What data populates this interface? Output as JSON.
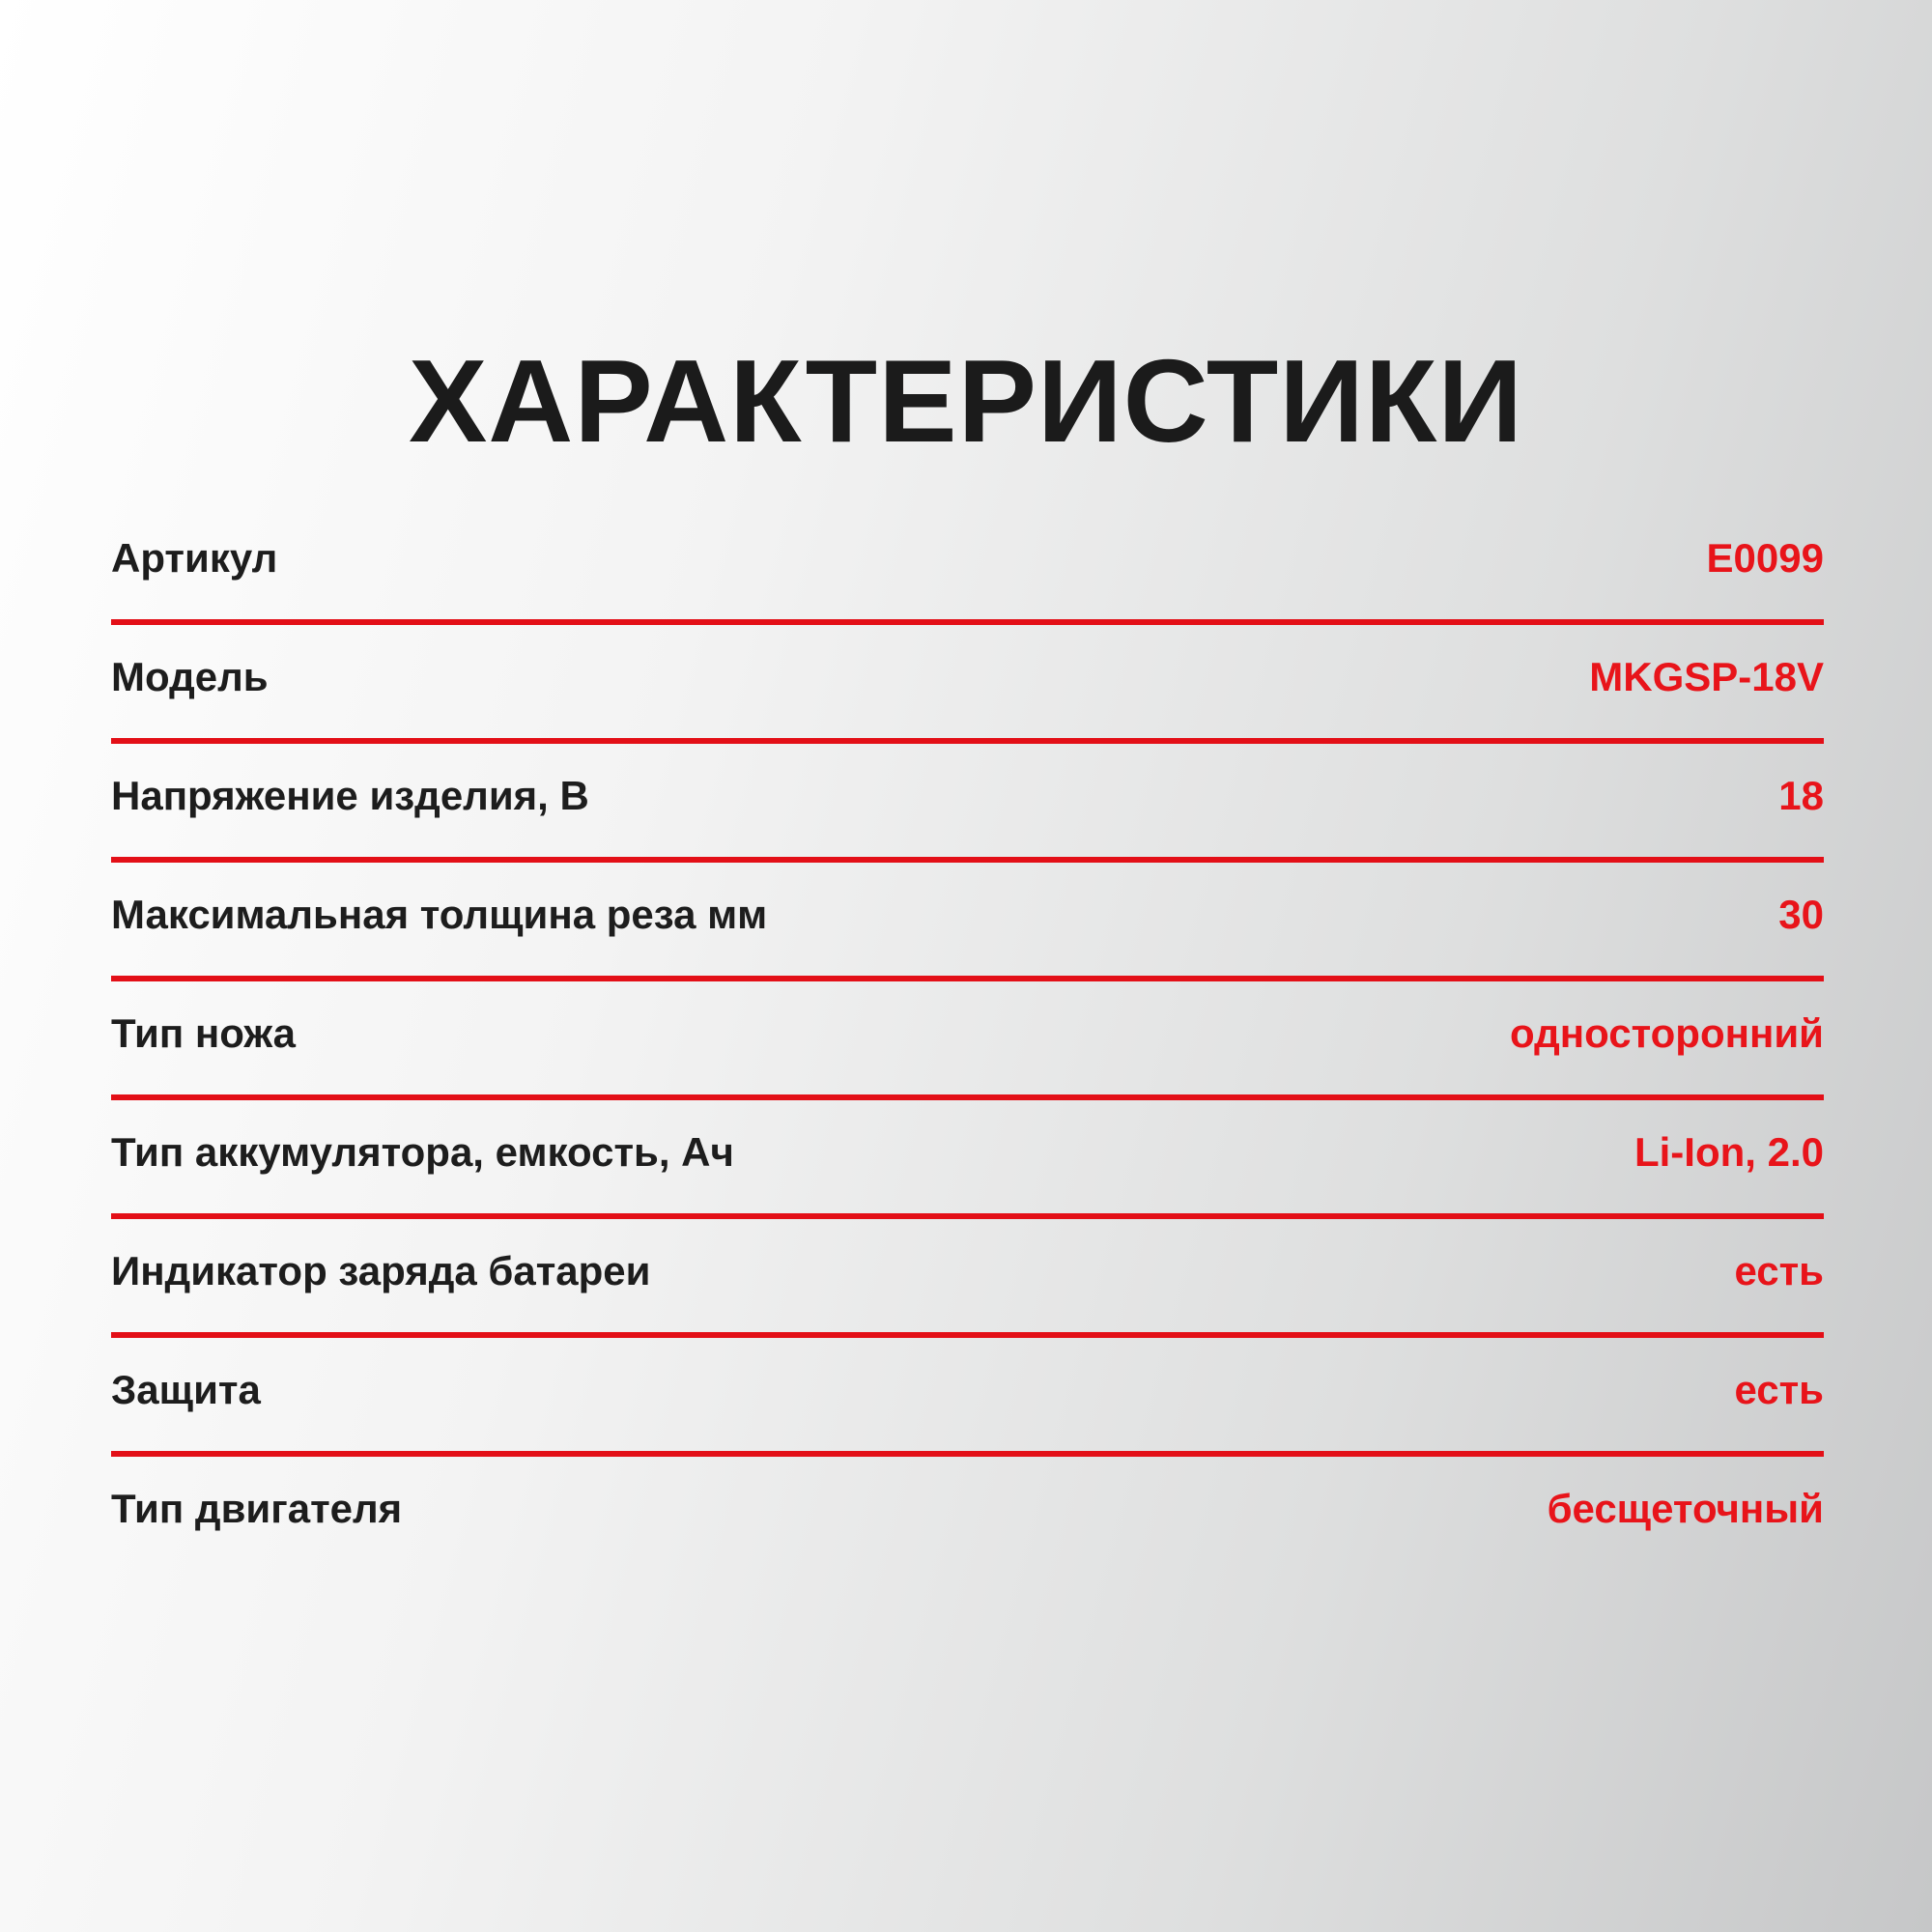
{
  "title": "ХАРАКТЕРИСТИКИ",
  "accent_color": "#e30f17",
  "specs": [
    {
      "label": "Артикул",
      "value": "E0099"
    },
    {
      "label": "Модель",
      "value": "MKGSP-18V"
    },
    {
      "label": "Напряжение изделия, В",
      "value": "18"
    },
    {
      "label": "Максимальная толщина реза мм",
      "value": "30"
    },
    {
      "label": "Тип ножа",
      "value": "односторонний"
    },
    {
      "label": "Тип аккумулятора, емкость, Ач",
      "value": "Li-Ion, 2.0"
    },
    {
      "label": "Индикатор заряда батареи",
      "value": "есть"
    },
    {
      "label": "Защита",
      "value": "есть"
    },
    {
      "label": "Тип двигателя",
      "value": "бесщеточный"
    }
  ]
}
